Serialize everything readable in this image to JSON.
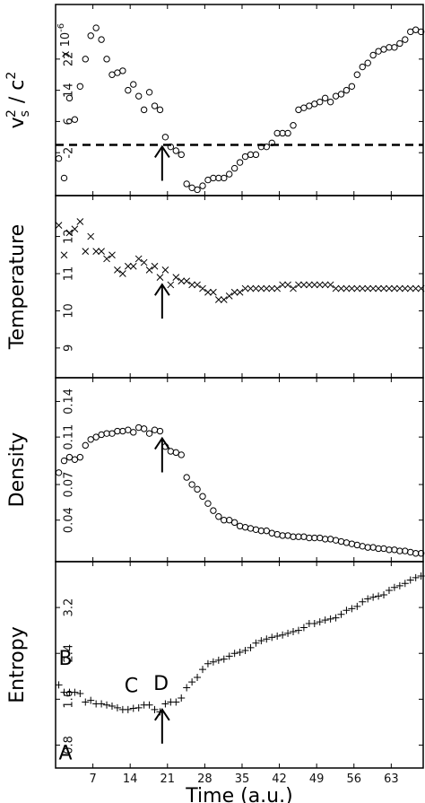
{
  "chart_data": {
    "type": "scatter",
    "xlabel": "Time (a.u.)",
    "xlim": [
      0,
      69
    ],
    "xticks": [
      7,
      14,
      21,
      28,
      35,
      42,
      49,
      56,
      63
    ],
    "arrow_at_x": 20,
    "panels": [
      {
        "id": "sound-speed",
        "ylabel": "v_s^2 / c^2",
        "ylabel_main": "v",
        "ylabel_sub": "s",
        "ylabel_sup": "2",
        "ylabel_rest": " / c",
        "ylabel_rest_sup": "2",
        "y_multiplier": "x 10",
        "y_multiplier_exp": "-6",
        "marker": "circle",
        "ylim": [
          -13,
          36
        ],
        "yticks": [
          -2,
          6,
          14,
          22
        ],
        "ytick_labels": [
          "-2",
          "6",
          "14",
          "22"
        ],
        "dashed_line_y": 0,
        "x": [
          0.6,
          1.6,
          2.6,
          3.6,
          4.6,
          5.6,
          6.6,
          7.6,
          8.6,
          9.6,
          10.6,
          11.6,
          12.6,
          13.6,
          14.6,
          15.6,
          16.6,
          17.6,
          18.6,
          19.6,
          20.6,
          21.6,
          22.6,
          23.6,
          24.6,
          25.6,
          26.6,
          27.6,
          28.6,
          29.6,
          30.6,
          31.6,
          32.6,
          33.6,
          34.6,
          35.6,
          36.6,
          37.6,
          38.6,
          39.6,
          40.6,
          41.6,
          42.6,
          43.6,
          44.6,
          45.6,
          46.6,
          47.6,
          48.6,
          49.6,
          50.6,
          51.6,
          52.6,
          53.6,
          54.6,
          55.6,
          56.6,
          57.6,
          58.6,
          59.6,
          60.6,
          61.6,
          62.6,
          63.6,
          64.6,
          65.6,
          66.6,
          67.6,
          68.6
        ],
        "y": [
          -3.5,
          -8.5,
          12,
          6.5,
          15,
          22,
          28,
          30,
          27,
          22,
          18,
          18.5,
          19,
          14,
          15.5,
          12.5,
          9,
          13.5,
          10,
          9,
          2,
          -0.5,
          -1.5,
          -2.5,
          -10,
          -11,
          -11.5,
          -10.5,
          -9,
          -8.5,
          -8.5,
          -8.5,
          -7.5,
          -6,
          -4.5,
          -3,
          -2.5,
          -2.5,
          -0.5,
          -0.5,
          0.5,
          3,
          3,
          3,
          5,
          9,
          9.5,
          10,
          10.5,
          11,
          12,
          11,
          12.5,
          13,
          14,
          15,
          18,
          20,
          21,
          23,
          24,
          24.5,
          25,
          25,
          26,
          27,
          29,
          29.5,
          29
        ]
      },
      {
        "id": "temperature",
        "ylabel": "Temperature",
        "marker": "x",
        "ylim": [
          8.2,
          13.1
        ],
        "yticks": [
          9,
          10,
          11,
          12
        ],
        "ytick_labels": [
          "9",
          "10",
          "11",
          "12"
        ],
        "x": [
          0.6,
          1.6,
          2.6,
          3.6,
          4.6,
          5.6,
          6.6,
          7.6,
          8.6,
          9.6,
          10.6,
          11.6,
          12.6,
          13.6,
          14.6,
          15.6,
          16.6,
          17.6,
          18.6,
          19.6,
          20.6,
          21.6,
          22.6,
          23.6,
          24.6,
          25.6,
          26.6,
          27.6,
          28.6,
          29.6,
          30.6,
          31.6,
          32.6,
          33.6,
          34.6,
          35.6,
          36.6,
          37.6,
          38.6,
          39.6,
          40.6,
          41.6,
          42.6,
          43.6,
          44.6,
          45.6,
          46.6,
          47.6,
          48.6,
          49.6,
          50.6,
          51.6,
          52.6,
          53.6,
          54.6,
          55.6,
          56.6,
          57.6,
          58.6,
          59.6,
          60.6,
          61.6,
          62.6,
          63.6,
          64.6,
          65.6,
          66.6,
          67.6,
          68.6
        ],
        "y": [
          12.3,
          11.5,
          12.1,
          12.2,
          12.4,
          11.6,
          12,
          11.6,
          11.6,
          11.4,
          11.5,
          11.1,
          11.0,
          11.2,
          11.2,
          11.4,
          11.3,
          11.1,
          11.2,
          10.9,
          11.1,
          10.7,
          10.9,
          10.8,
          10.8,
          10.7,
          10.7,
          10.6,
          10.5,
          10.5,
          10.3,
          10.3,
          10.4,
          10.5,
          10.5,
          10.6,
          10.6,
          10.6,
          10.6,
          10.6,
          10.6,
          10.6,
          10.7,
          10.7,
          10.6,
          10.7,
          10.7,
          10.7,
          10.7,
          10.7,
          10.7,
          10.7,
          10.6,
          10.6,
          10.6,
          10.6,
          10.6,
          10.6,
          10.6,
          10.6,
          10.6,
          10.6,
          10.6,
          10.6,
          10.6,
          10.6,
          10.6,
          10.6,
          10.6
        ]
      },
      {
        "id": "density",
        "ylabel": "Density",
        "marker": "circle",
        "ylim": [
          0.005,
          0.16
        ],
        "yticks": [
          0.04,
          0.07,
          0.11,
          0.14
        ],
        "ytick_labels": [
          "0.04",
          "0.07",
          "0.11",
          "0.14"
        ],
        "x": [
          0.6,
          1.6,
          2.6,
          3.6,
          4.6,
          5.6,
          6.6,
          7.6,
          8.6,
          9.6,
          10.6,
          11.6,
          12.6,
          13.6,
          14.6,
          15.6,
          16.6,
          17.6,
          18.6,
          19.6,
          20.6,
          21.6,
          22.6,
          23.6,
          24.6,
          25.6,
          26.6,
          27.6,
          28.6,
          29.6,
          30.6,
          31.6,
          32.6,
          33.6,
          34.6,
          35.6,
          36.6,
          37.6,
          38.6,
          39.6,
          40.6,
          41.6,
          42.6,
          43.6,
          44.6,
          45.6,
          46.6,
          47.6,
          48.6,
          49.6,
          50.6,
          51.6,
          52.6,
          53.6,
          54.6,
          55.6,
          56.6,
          57.6,
          58.6,
          59.6,
          60.6,
          61.6,
          62.6,
          63.6,
          64.6,
          65.6,
          66.6,
          67.6,
          68.6
        ],
        "y": [
          0.08,
          0.09,
          0.093,
          0.091,
          0.093,
          0.103,
          0.108,
          0.11,
          0.112,
          0.113,
          0.113,
          0.115,
          0.115,
          0.116,
          0.114,
          0.118,
          0.117,
          0.113,
          0.116,
          0.115,
          0.102,
          0.098,
          0.097,
          0.095,
          0.076,
          0.07,
          0.066,
          0.06,
          0.054,
          0.048,
          0.043,
          0.04,
          0.04,
          0.038,
          0.035,
          0.034,
          0.033,
          0.032,
          0.031,
          0.031,
          0.029,
          0.028,
          0.027,
          0.027,
          0.026,
          0.026,
          0.026,
          0.025,
          0.025,
          0.025,
          0.024,
          0.024,
          0.023,
          0.022,
          0.021,
          0.02,
          0.019,
          0.018,
          0.017,
          0.017,
          0.016,
          0.016,
          0.015,
          0.015,
          0.014,
          0.014,
          0.013,
          0.012,
          0.012
        ]
      },
      {
        "id": "entropy",
        "ylabel": "Entropy",
        "marker": "plus",
        "ylim": [
          0.4,
          4.0
        ],
        "yticks": [
          0.8,
          1.6,
          2.4,
          3.2
        ],
        "ytick_labels": [
          "0.8",
          "1.6",
          "2.4",
          "3.2"
        ],
        "letters": [
          {
            "text": "A",
            "x": 1.0,
            "y": 0.55
          },
          {
            "text": "B",
            "x": 1.0,
            "y": 2.2
          },
          {
            "text": "C",
            "x": 14.2,
            "y": 1.72
          },
          {
            "text": "D",
            "x": 19.8,
            "y": 1.76
          }
        ],
        "x": [
          0.6,
          1.6,
          2.6,
          3.6,
          4.6,
          5.6,
          6.6,
          7.6,
          8.6,
          9.6,
          10.6,
          11.6,
          12.6,
          13.6,
          14.6,
          15.6,
          16.6,
          17.6,
          18.6,
          19.6,
          20.6,
          21.6,
          22.6,
          23.6,
          24.6,
          25.6,
          26.6,
          27.6,
          28.6,
          29.6,
          30.6,
          31.6,
          32.6,
          33.6,
          34.6,
          35.6,
          36.6,
          37.6,
          38.6,
          39.6,
          40.6,
          41.6,
          42.6,
          43.6,
          44.6,
          45.6,
          46.6,
          47.6,
          48.6,
          49.6,
          50.6,
          51.6,
          52.6,
          53.6,
          54.6,
          55.6,
          56.6,
          57.6,
          58.6,
          59.6,
          60.6,
          61.6,
          62.6,
          63.6,
          64.6,
          65.6,
          66.6,
          67.6,
          68.6
        ],
        "y": [
          1.85,
          1.72,
          1.72,
          1.72,
          1.7,
          1.55,
          1.58,
          1.52,
          1.52,
          1.5,
          1.48,
          1.45,
          1.42,
          1.42,
          1.44,
          1.45,
          1.5,
          1.5,
          1.42,
          1.38,
          1.52,
          1.55,
          1.55,
          1.62,
          1.8,
          1.9,
          1.98,
          2.12,
          2.22,
          2.25,
          2.28,
          2.3,
          2.35,
          2.4,
          2.42,
          2.45,
          2.5,
          2.58,
          2.62,
          2.65,
          2.68,
          2.7,
          2.72,
          2.75,
          2.78,
          2.8,
          2.85,
          2.92,
          2.92,
          2.95,
          2.98,
          3.0,
          3.02,
          3.08,
          3.15,
          3.18,
          3.22,
          3.3,
          3.35,
          3.38,
          3.4,
          3.42,
          3.5,
          3.55,
          3.58,
          3.62,
          3.68,
          3.72,
          3.75
        ]
      }
    ]
  }
}
